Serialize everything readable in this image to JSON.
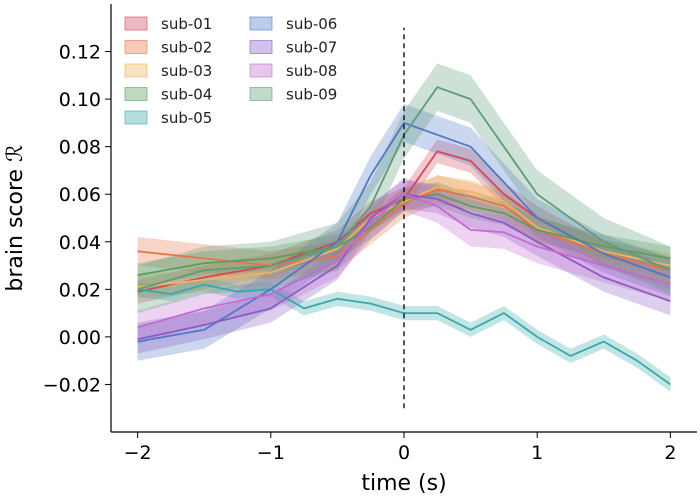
{
  "chart_data": {
    "type": "line",
    "title": "",
    "xlabel": "time (s)",
    "ylabel": "brain score ℛ",
    "xlim": [
      -2.2,
      2.2
    ],
    "ylim": [
      -0.04,
      0.14
    ],
    "xticks": [
      -2,
      -1,
      0,
      1,
      2
    ],
    "xtick_labels": [
      "−2",
      "−1",
      "0",
      "1",
      "2"
    ],
    "yticks": [
      -0.02,
      0.0,
      0.02,
      0.04,
      0.06,
      0.08,
      0.1,
      0.12
    ],
    "ytick_labels": [
      "−0.02",
      "0.00",
      "0.02",
      "0.04",
      "0.06",
      "0.08",
      "0.10",
      "0.12"
    ],
    "vline": {
      "x": 0,
      "y_range": [
        -0.03,
        0.13
      ],
      "style": "dashed"
    },
    "legend_position": "top-left",
    "series": [
      {
        "name": "sub-01",
        "color": "#d1495b",
        "x": [
          -2,
          -1.5,
          -1,
          -0.5,
          -0.25,
          0,
          0.25,
          0.5,
          0.75,
          1,
          1.5,
          2
        ],
        "values": [
          0.019,
          0.025,
          0.03,
          0.04,
          0.052,
          0.058,
          0.078,
          0.074,
          0.06,
          0.05,
          0.035,
          0.025
        ],
        "band": 0.005
      },
      {
        "name": "sub-02",
        "color": "#e8734a",
        "x": [
          -2,
          -1.5,
          -1,
          -0.5,
          -0.25,
          0,
          0.25,
          0.5,
          0.75,
          1,
          1.5,
          2
        ],
        "values": [
          0.036,
          0.033,
          0.03,
          0.034,
          0.045,
          0.056,
          0.062,
          0.059,
          0.055,
          0.045,
          0.035,
          0.028
        ],
        "band": 0.006
      },
      {
        "name": "sub-03",
        "color": "#f0b25a",
        "x": [
          -2,
          -1.5,
          -1,
          -0.5,
          -0.25,
          0,
          0.25,
          0.5,
          0.75,
          1,
          1.5,
          2
        ],
        "values": [
          0.021,
          0.024,
          0.027,
          0.037,
          0.05,
          0.057,
          0.063,
          0.061,
          0.057,
          0.046,
          0.036,
          0.03
        ],
        "band": 0.005
      },
      {
        "name": "sub-04",
        "color": "#5a9e5a",
        "x": [
          -2,
          -1.5,
          -1,
          -0.5,
          -0.25,
          0,
          0.25,
          0.5,
          0.75,
          1,
          1.5,
          2
        ],
        "values": [
          0.026,
          0.031,
          0.033,
          0.038,
          0.046,
          0.058,
          0.06,
          0.055,
          0.052,
          0.045,
          0.038,
          0.033
        ],
        "band": 0.005
      },
      {
        "name": "sub-05",
        "color": "#3aa8a8",
        "x": [
          -2,
          -1.75,
          -1.5,
          -1.25,
          -1,
          -0.75,
          -0.5,
          -0.25,
          0,
          0.25,
          0.5,
          0.75,
          1,
          1.25,
          1.5,
          1.75,
          2
        ],
        "values": [
          0.02,
          0.018,
          0.022,
          0.019,
          0.02,
          0.012,
          0.016,
          0.014,
          0.01,
          0.01,
          0.003,
          0.01,
          0.0,
          -0.008,
          -0.002,
          -0.01,
          -0.02
        ],
        "band": 0.003
      },
      {
        "name": "sub-06",
        "color": "#4f79c7",
        "x": [
          -2,
          -1.5,
          -1,
          -0.5,
          -0.25,
          0,
          0.25,
          0.5,
          0.75,
          1,
          1.5,
          2
        ],
        "values": [
          -0.002,
          0.003,
          0.02,
          0.04,
          0.068,
          0.09,
          0.085,
          0.08,
          0.065,
          0.05,
          0.035,
          0.025
        ],
        "band": 0.008
      },
      {
        "name": "sub-07",
        "color": "#8a5cc4",
        "x": [
          -2,
          -1.5,
          -1,
          -0.5,
          -0.25,
          0,
          0.25,
          0.5,
          0.75,
          1,
          1.5,
          2
        ],
        "values": [
          -0.001,
          0.005,
          0.012,
          0.03,
          0.05,
          0.06,
          0.058,
          0.052,
          0.048,
          0.04,
          0.025,
          0.015
        ],
        "band": 0.006
      },
      {
        "name": "sub-08",
        "color": "#c46ad1",
        "x": [
          -2,
          -1.5,
          -1,
          -0.5,
          -0.25,
          0,
          0.25,
          0.5,
          0.75,
          1,
          1.5,
          2
        ],
        "values": [
          0.004,
          0.012,
          0.018,
          0.032,
          0.048,
          0.06,
          0.055,
          0.045,
          0.044,
          0.038,
          0.03,
          0.022
        ],
        "band": 0.007
      },
      {
        "name": "sub-09",
        "color": "#5e9c7a",
        "x": [
          -2,
          -1.5,
          -1,
          -0.5,
          -0.25,
          0,
          0.25,
          0.5,
          0.75,
          1,
          1.5,
          2
        ],
        "values": [
          0.02,
          0.028,
          0.03,
          0.038,
          0.055,
          0.085,
          0.105,
          0.1,
          0.08,
          0.06,
          0.04,
          0.028
        ],
        "band": 0.01
      }
    ]
  }
}
